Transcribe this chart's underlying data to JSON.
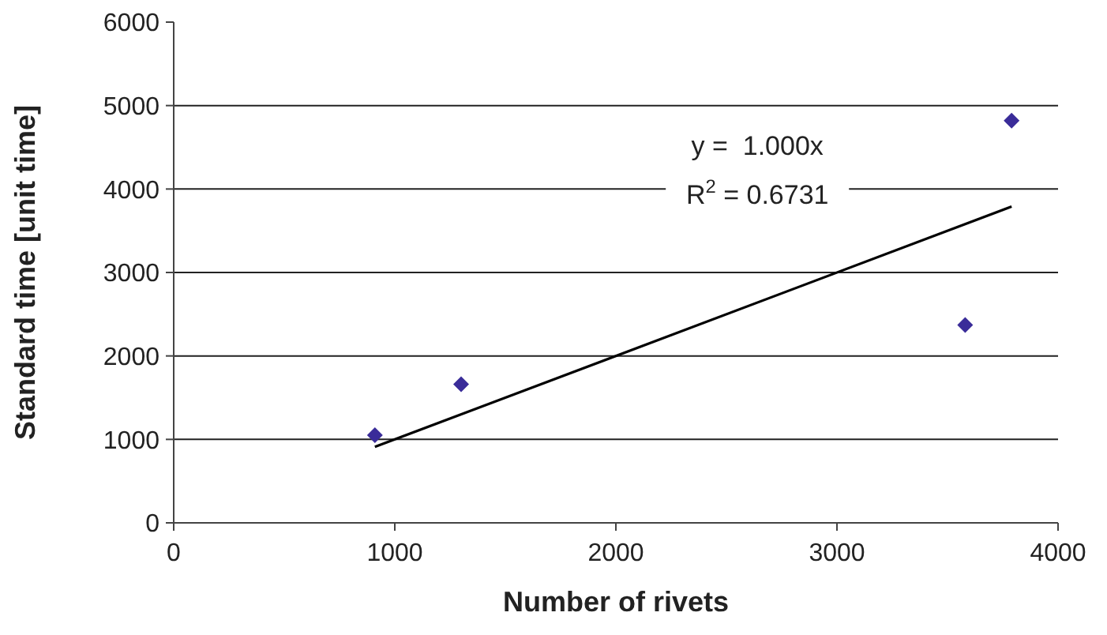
{
  "chart_data": {
    "type": "scatter",
    "xlabel": "Number of rivets",
    "ylabel": "Standard time [unit time]",
    "xlim": [
      0,
      4000
    ],
    "xticks": [
      0,
      1000,
      2000,
      3000,
      4000
    ],
    "ylim": [
      0,
      6000
    ],
    "yticks": [
      0,
      1000,
      2000,
      3000,
      4000,
      5000,
      6000
    ],
    "grid": "y",
    "series": [
      {
        "marker": "diamond",
        "color": "#3a2c99",
        "x": [
          910,
          1300,
          3580,
          3790
        ],
        "values": [
          1050,
          1660,
          2370,
          4820
        ]
      },
      {
        "type": "line",
        "color": "#000000",
        "x": [
          910,
          3790
        ],
        "values": [
          910,
          3790
        ]
      }
    ],
    "annotations": [
      "y =  1.000x",
      "R$^{2}$ = 0.6731"
    ]
  }
}
